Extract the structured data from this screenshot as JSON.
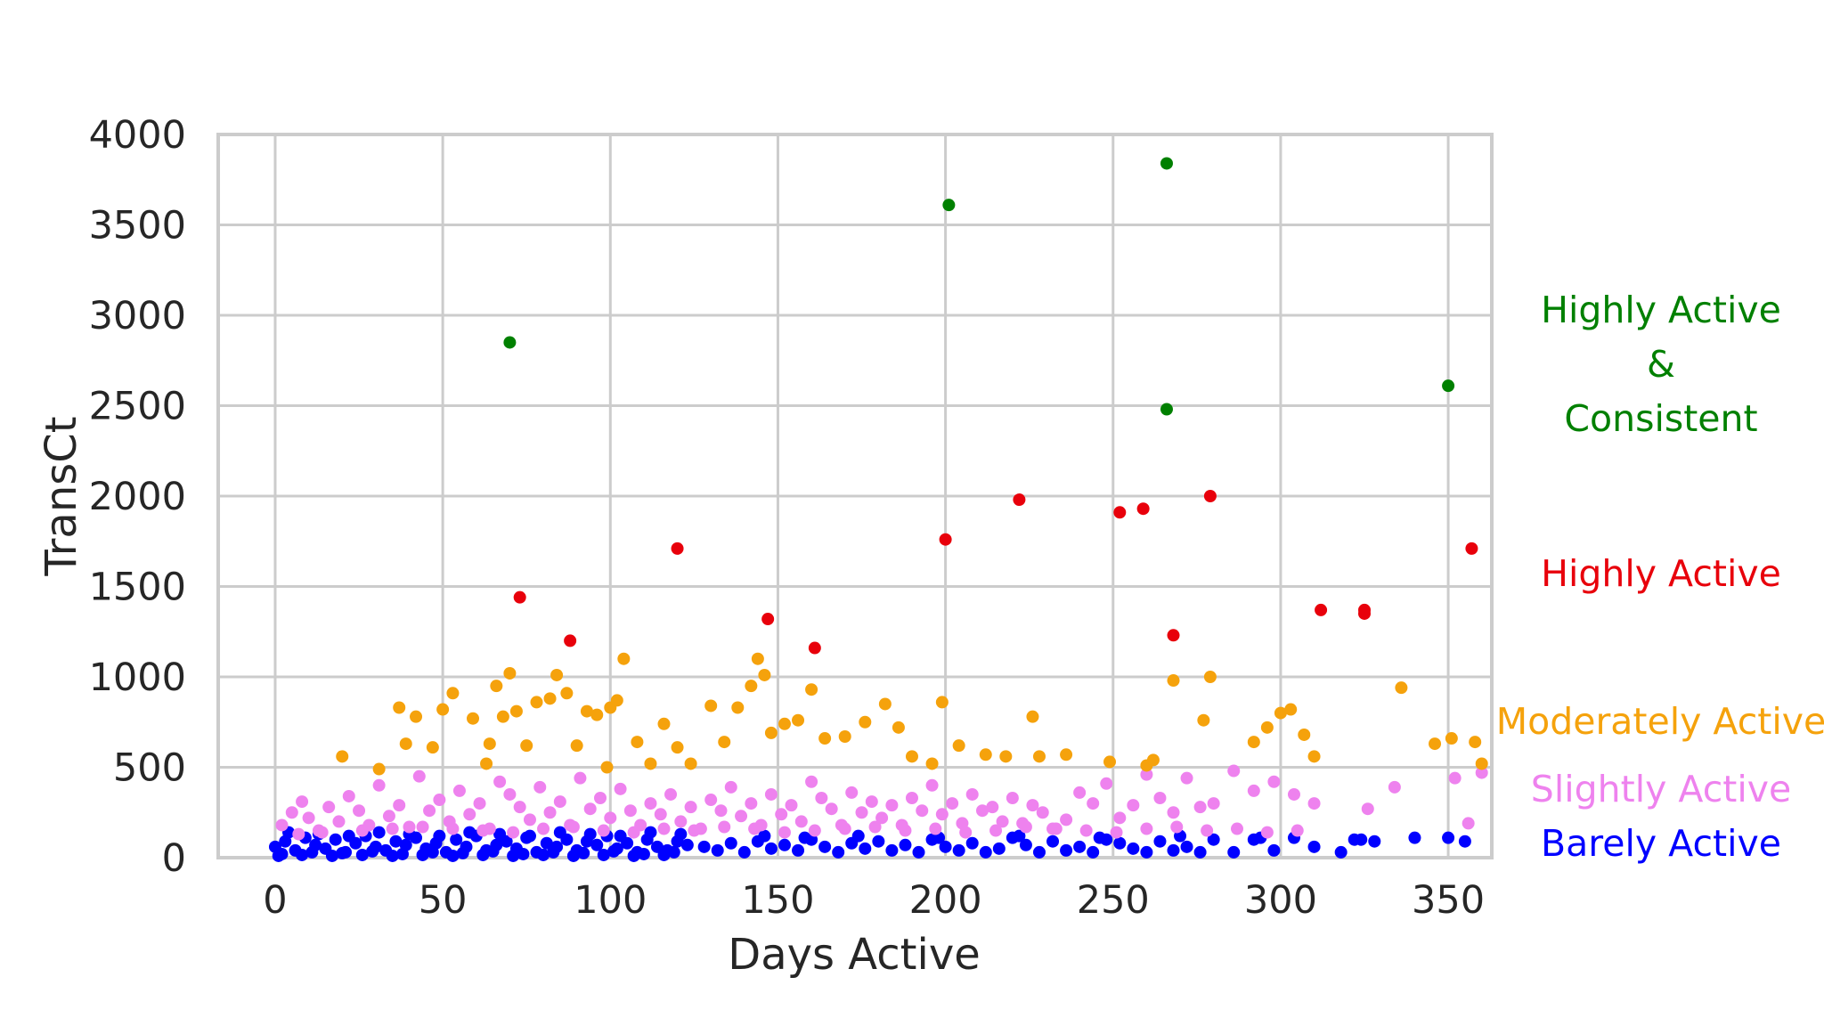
{
  "chart_data": {
    "type": "scatter",
    "xlabel": "Days Active",
    "ylabel": "TransCt",
    "xlim": [
      -17,
      363
    ],
    "ylim": [
      0,
      4000
    ],
    "xticks": [
      0,
      50,
      100,
      150,
      200,
      250,
      300,
      350
    ],
    "yticks": [
      0,
      500,
      1000,
      1500,
      2000,
      2500,
      3000,
      3500,
      4000
    ],
    "grid": true,
    "legend_position": "right",
    "series": [
      {
        "name": "Highly Active & Consistent",
        "label_lines": [
          "Highly Active",
          "&",
          "Consistent"
        ],
        "color": "#008000",
        "x": [
          70,
          201,
          266,
          266,
          350
        ],
        "y": [
          2850,
          3610,
          3840,
          2480,
          2610
        ]
      },
      {
        "name": "Highly Active",
        "label_lines": [
          "Highly Active"
        ],
        "color": "#e8000b",
        "x": [
          73,
          88,
          120,
          147,
          161,
          200,
          222,
          252,
          259,
          268,
          279,
          312,
          325,
          325,
          357
        ],
        "y": [
          1440,
          1200,
          1710,
          1320,
          1160,
          1760,
          1980,
          1910,
          1930,
          1230,
          2000,
          1370,
          1370,
          1350,
          1710
        ]
      },
      {
        "name": "Moderately Active",
        "label_lines": [
          "Moderately Active"
        ],
        "color": "#f5a20c",
        "x": [
          20,
          31,
          37,
          39,
          42,
          47,
          50,
          53,
          59,
          63,
          64,
          66,
          68,
          70,
          72,
          75,
          78,
          82,
          84,
          87,
          90,
          93,
          96,
          99,
          100,
          102,
          104,
          108,
          112,
          116,
          120,
          124,
          130,
          134,
          138,
          142,
          144,
          146,
          148,
          152,
          156,
          160,
          164,
          170,
          176,
          182,
          186,
          190,
          196,
          199,
          204,
          212,
          218,
          226,
          228,
          236,
          249,
          260,
          262,
          268,
          277,
          279,
          292,
          296,
          300,
          303,
          307,
          310,
          336,
          346,
          351,
          358,
          360
        ],
        "y": [
          560,
          490,
          830,
          630,
          780,
          610,
          820,
          910,
          770,
          520,
          630,
          950,
          780,
          1020,
          810,
          620,
          860,
          880,
          1010,
          910,
          620,
          810,
          790,
          500,
          830,
          870,
          1100,
          640,
          520,
          740,
          610,
          520,
          840,
          640,
          830,
          950,
          1100,
          1010,
          690,
          740,
          760,
          930,
          660,
          670,
          750,
          850,
          720,
          560,
          520,
          860,
          620,
          570,
          560,
          780,
          560,
          570,
          530,
          510,
          540,
          980,
          760,
          1000,
          640,
          720,
          800,
          820,
          680,
          560,
          940,
          630,
          660,
          640,
          520
        ]
      },
      {
        "name": "Slightly Active",
        "label_lines": [
          "Slightly Active"
        ],
        "color": "#ee82ee",
        "x": [
          2,
          5,
          8,
          10,
          13,
          16,
          19,
          22,
          25,
          28,
          31,
          34,
          37,
          40,
          43,
          46,
          49,
          52,
          55,
          58,
          61,
          64,
          67,
          70,
          73,
          76,
          79,
          82,
          85,
          88,
          91,
          94,
          97,
          100,
          103,
          106,
          109,
          112,
          115,
          118,
          121,
          124,
          127,
          130,
          133,
          136,
          139,
          142,
          145,
          148,
          151,
          154,
          157,
          160,
          163,
          166,
          169,
          172,
          175,
          178,
          181,
          184,
          187,
          190,
          193,
          196,
          199,
          202,
          205,
          208,
          211,
          214,
          217,
          220,
          223,
          226,
          229,
          232,
          236,
          240,
          244,
          248,
          252,
          256,
          260,
          264,
          268,
          272,
          276,
          280,
          286,
          292,
          298,
          304,
          310,
          326,
          334,
          352,
          356,
          360,
          7,
          14,
          26,
          35,
          44,
          53,
          62,
          71,
          80,
          89,
          98,
          107,
          116,
          125,
          134,
          143,
          152,
          161,
          170,
          179,
          188,
          197,
          206,
          215,
          224,
          233,
          242,
          251,
          260,
          269,
          278,
          287,
          296,
          305
        ],
        "y": [
          180,
          250,
          310,
          220,
          150,
          280,
          200,
          340,
          260,
          180,
          400,
          230,
          290,
          170,
          450,
          260,
          320,
          200,
          370,
          240,
          300,
          160,
          420,
          350,
          280,
          210,
          390,
          250,
          310,
          180,
          440,
          270,
          330,
          220,
          380,
          260,
          180,
          300,
          240,
          350,
          200,
          280,
          160,
          320,
          260,
          390,
          230,
          300,
          180,
          350,
          240,
          290,
          200,
          420,
          330,
          270,
          180,
          360,
          250,
          310,
          220,
          290,
          180,
          330,
          260,
          400,
          240,
          300,
          190,
          350,
          260,
          280,
          200,
          330,
          190,
          290,
          250,
          160,
          210,
          360,
          300,
          410,
          220,
          290,
          460,
          330,
          250,
          440,
          280,
          300,
          480,
          370,
          420,
          350,
          300,
          270,
          390,
          440,
          190,
          470,
          130,
          140,
          150,
          160,
          170,
          160,
          150,
          140,
          160,
          170,
          150,
          140,
          160,
          150,
          170,
          160,
          140,
          150,
          160,
          170,
          150,
          160,
          140,
          150,
          170,
          160,
          150,
          140,
          160,
          170,
          150,
          160,
          140,
          150
        ]
      },
      {
        "name": "Barely Active",
        "label_lines": [
          "Barely Active"
        ],
        "color": "#0000ff",
        "x": [
          0,
          3,
          6,
          9,
          12,
          15,
          18,
          21,
          24,
          27,
          30,
          33,
          36,
          39,
          42,
          45,
          48,
          51,
          54,
          57,
          60,
          63,
          66,
          69,
          72,
          75,
          78,
          81,
          84,
          87,
          90,
          93,
          96,
          99,
          102,
          105,
          108,
          111,
          114,
          117,
          120,
          123,
          128,
          132,
          136,
          140,
          144,
          148,
          152,
          156,
          160,
          164,
          168,
          172,
          176,
          180,
          184,
          188,
          192,
          196,
          200,
          204,
          208,
          212,
          216,
          220,
          224,
          228,
          232,
          236,
          240,
          244,
          248,
          252,
          256,
          260,
          264,
          268,
          272,
          276,
          280,
          286,
          292,
          298,
          304,
          310,
          318,
          324,
          328,
          340,
          350,
          355,
          2,
          11,
          20,
          29,
          38,
          47,
          56,
          65,
          74,
          83,
          92,
          101,
          110,
          119,
          1,
          8,
          17,
          26,
          35,
          44,
          53,
          62,
          71,
          80,
          89,
          98,
          107,
          116,
          4,
          13,
          22,
          31,
          40,
          49,
          58,
          67,
          76,
          85,
          94,
          103,
          112,
          121,
          146,
          158,
          174,
          198,
          222,
          246,
          270,
          294,
          322
        ],
        "y": [
          60,
          90,
          40,
          110,
          70,
          50,
          100,
          30,
          80,
          120,
          60,
          40,
          90,
          70,
          110,
          50,
          80,
          30,
          100,
          60,
          120,
          40,
          70,
          90,
          50,
          110,
          30,
          80,
          60,
          100,
          40,
          90,
          70,
          120,
          50,
          80,
          30,
          100,
          60,
          40,
          90,
          70,
          60,
          40,
          80,
          30,
          90,
          50,
          70,
          40,
          100,
          60,
          30,
          80,
          50,
          90,
          40,
          70,
          30,
          100,
          60,
          40,
          80,
          30,
          50,
          110,
          70,
          30,
          90,
          40,
          60,
          30,
          100,
          80,
          50,
          30,
          90,
          40,
          60,
          30,
          100,
          30,
          100,
          40,
          110,
          60,
          30,
          100,
          90,
          110,
          110,
          90,
          20,
          30,
          25,
          35,
          20,
          30,
          25,
          35,
          20,
          30,
          25,
          35,
          20,
          30,
          10,
          15,
          10,
          15,
          10,
          15,
          10,
          15,
          10,
          15,
          10,
          15,
          10,
          15,
          140,
          130,
          120,
          140,
          130,
          120,
          140,
          130,
          120,
          140,
          130,
          120,
          140,
          130,
          120,
          110,
          120,
          110,
          120,
          110,
          120,
          110,
          100
        ]
      }
    ]
  }
}
